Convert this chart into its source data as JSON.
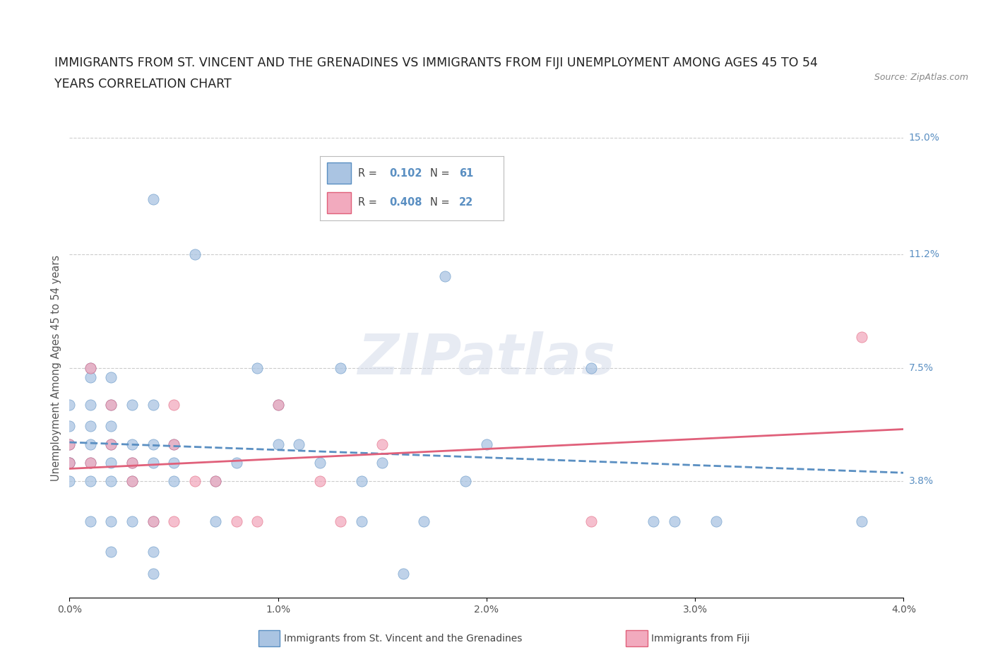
{
  "title_line1": "IMMIGRANTS FROM ST. VINCENT AND THE GRENADINES VS IMMIGRANTS FROM FIJI UNEMPLOYMENT AMONG AGES 45 TO 54",
  "title_line2": "YEARS CORRELATION CHART",
  "source": "Source: ZipAtlas.com",
  "ylabel": "Unemployment Among Ages 45 to 54 years",
  "xlim": [
    0.0,
    0.04
  ],
  "ylim": [
    0.0,
    0.15
  ],
  "ytick_vals": [
    0.038,
    0.075,
    0.112,
    0.15
  ],
  "ytick_labels": [
    "3.8%",
    "7.5%",
    "11.2%",
    "15.0%"
  ],
  "xtick_vals": [
    0.0,
    0.01,
    0.02,
    0.03,
    0.04
  ],
  "xtick_labels": [
    "0.0%",
    "1.0%",
    "2.0%",
    "3.0%",
    "4.0%"
  ],
  "watermark": "ZIPatlas",
  "R1": 0.102,
  "N1": 61,
  "R2": 0.408,
  "N2": 22,
  "color_sv": "#aac4e2",
  "color_fiji": "#f2aabe",
  "line_color_sv": "#5a8fc2",
  "line_color_fiji": "#e0607a",
  "scatter_sv": [
    [
      0.0,
      0.056
    ],
    [
      0.0,
      0.063
    ],
    [
      0.0,
      0.05
    ],
    [
      0.0,
      0.044
    ],
    [
      0.0,
      0.038
    ],
    [
      0.0,
      0.044
    ],
    [
      0.001,
      0.075
    ],
    [
      0.001,
      0.072
    ],
    [
      0.001,
      0.063
    ],
    [
      0.001,
      0.056
    ],
    [
      0.001,
      0.05
    ],
    [
      0.001,
      0.044
    ],
    [
      0.001,
      0.038
    ],
    [
      0.001,
      0.025
    ],
    [
      0.002,
      0.072
    ],
    [
      0.002,
      0.063
    ],
    [
      0.002,
      0.056
    ],
    [
      0.002,
      0.05
    ],
    [
      0.002,
      0.044
    ],
    [
      0.002,
      0.038
    ],
    [
      0.002,
      0.025
    ],
    [
      0.002,
      0.015
    ],
    [
      0.003,
      0.063
    ],
    [
      0.003,
      0.05
    ],
    [
      0.003,
      0.044
    ],
    [
      0.003,
      0.038
    ],
    [
      0.003,
      0.025
    ],
    [
      0.004,
      0.13
    ],
    [
      0.004,
      0.063
    ],
    [
      0.004,
      0.05
    ],
    [
      0.004,
      0.044
    ],
    [
      0.004,
      0.025
    ],
    [
      0.004,
      0.015
    ],
    [
      0.004,
      0.008
    ],
    [
      0.005,
      0.05
    ],
    [
      0.005,
      0.044
    ],
    [
      0.005,
      0.038
    ],
    [
      0.006,
      0.112
    ],
    [
      0.007,
      0.025
    ],
    [
      0.007,
      0.038
    ],
    [
      0.008,
      0.044
    ],
    [
      0.009,
      0.075
    ],
    [
      0.01,
      0.063
    ],
    [
      0.01,
      0.05
    ],
    [
      0.011,
      0.05
    ],
    [
      0.012,
      0.044
    ],
    [
      0.013,
      0.075
    ],
    [
      0.014,
      0.038
    ],
    [
      0.014,
      0.025
    ],
    [
      0.015,
      0.044
    ],
    [
      0.016,
      0.008
    ],
    [
      0.017,
      0.025
    ],
    [
      0.018,
      0.125
    ],
    [
      0.018,
      0.105
    ],
    [
      0.019,
      0.038
    ],
    [
      0.02,
      0.05
    ],
    [
      0.025,
      0.075
    ],
    [
      0.028,
      0.025
    ],
    [
      0.029,
      0.025
    ],
    [
      0.031,
      0.025
    ],
    [
      0.038,
      0.025
    ]
  ],
  "scatter_fiji": [
    [
      0.0,
      0.044
    ],
    [
      0.0,
      0.05
    ],
    [
      0.001,
      0.075
    ],
    [
      0.001,
      0.044
    ],
    [
      0.002,
      0.063
    ],
    [
      0.002,
      0.05
    ],
    [
      0.003,
      0.044
    ],
    [
      0.003,
      0.038
    ],
    [
      0.004,
      0.025
    ],
    [
      0.005,
      0.063
    ],
    [
      0.005,
      0.05
    ],
    [
      0.005,
      0.025
    ],
    [
      0.006,
      0.038
    ],
    [
      0.007,
      0.038
    ],
    [
      0.008,
      0.025
    ],
    [
      0.009,
      0.025
    ],
    [
      0.01,
      0.063
    ],
    [
      0.012,
      0.038
    ],
    [
      0.013,
      0.025
    ],
    [
      0.015,
      0.05
    ],
    [
      0.025,
      0.025
    ],
    [
      0.038,
      0.085
    ]
  ],
  "background_color": "#ffffff",
  "grid_color": "#cccccc"
}
